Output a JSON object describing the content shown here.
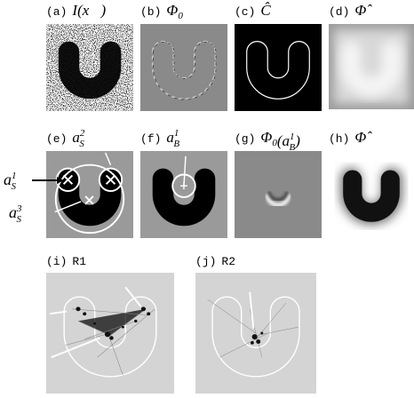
{
  "panels": [
    {
      "letter": "(a)",
      "caption": {
        "base": "I(x⃗)"
      }
    },
    {
      "letter": "(b)",
      "caption": {
        "base": "Φ",
        "sub": "0"
      }
    },
    {
      "letter": "(c)",
      "caption": {
        "base": "Ĉ"
      }
    },
    {
      "letter": "(d)",
      "caption": {
        "base": "Φ̂"
      }
    },
    {
      "letter": "(e)",
      "caption": {
        "base": "a",
        "sup": "2",
        "sub": "S"
      }
    },
    {
      "letter": "(f)",
      "caption": {
        "base": "a",
        "sup": "1",
        "sub": "B"
      }
    },
    {
      "letter": "(g)",
      "caption": {
        "base": "Φ",
        "sub": "0",
        "tail": "(a",
        "tsup": "1",
        "tsub": "B",
        "end": ")"
      }
    },
    {
      "letter": "(h)",
      "caption": {
        "base": "Φ̂"
      }
    },
    {
      "letter": "(i)",
      "caption": {
        "base": "R1"
      }
    },
    {
      "letter": "(j)",
      "caption": {
        "base": "R2"
      }
    }
  ],
  "annotations": [
    {
      "base": "a",
      "sup": "1",
      "sub": "S"
    },
    {
      "base": "a",
      "sup": "3",
      "sub": "S"
    }
  ]
}
